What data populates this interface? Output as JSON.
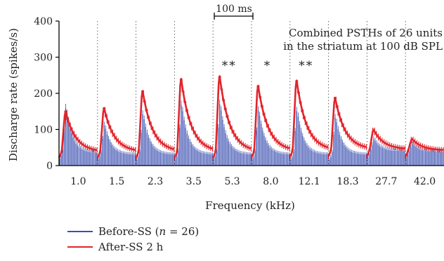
{
  "chart_data": {
    "type": "bar",
    "ylabel": "Discharge rate (spikes/s)",
    "xlabel": "Frequency (kHz)",
    "ylim": [
      0,
      400
    ],
    "yticks": [
      0,
      100,
      200,
      300,
      400
    ],
    "categories": [
      "1.0",
      "1.5",
      "2.3",
      "3.5",
      "5.3",
      "8.0",
      "12.1",
      "18.3",
      "27.7",
      "42.0"
    ],
    "annotation": [
      "Combined PSTHs of 26 units",
      "in the striatum at 100 dB SPL"
    ],
    "scalebar_label": "100 ms",
    "significance": [
      "",
      "",
      "",
      "",
      "**",
      "*",
      "**",
      "",
      "",
      ""
    ],
    "series": [
      {
        "name": "Before-SS (n = 26)",
        "color": "#3a4fb0",
        "style": "bars",
        "peaks": [
          168,
          118,
          150,
          178,
          180,
          162,
          160,
          140,
          75,
          62
        ],
        "baselines": [
          35,
          30,
          30,
          30,
          30,
          30,
          30,
          30,
          40,
          38
        ]
      },
      {
        "name": "After-SS 2 h",
        "color": "#e2242b",
        "style": "line",
        "peaks": [
          155,
          165,
          215,
          250,
          258,
          230,
          245,
          195,
          102,
          75
        ],
        "baselines": [
          38,
          38,
          38,
          38,
          38,
          40,
          42,
          45,
          45,
          42
        ]
      }
    ],
    "legend": [
      {
        "prefix": "Before-SS (",
        "italic": "n",
        "suffix": " = 26)",
        "color": "#3a4fb0"
      },
      {
        "prefix": "After-SS 2 h",
        "italic": "",
        "suffix": "",
        "color": "#e2242b"
      }
    ]
  }
}
